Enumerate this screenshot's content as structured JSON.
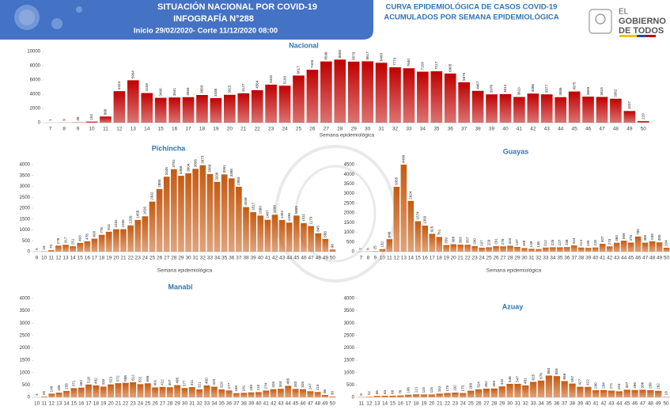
{
  "header": {
    "title_lines": [
      "SITUACIÓN NACIONAL POR  COVID-19",
      "INFOGRAFÍA N°288",
      "Inicio 29/02/2020- Corte 11/12/2020 08:00"
    ],
    "right_title": [
      "CURVA EPIDEMIOLÓGICA DE CASOS COVID-19",
      "ACUMULADOS POR SEMANA EPIDEMIOLÓGICA"
    ],
    "logo": [
      "EL",
      "GOBIERNO",
      "DE TODOS"
    ]
  },
  "chart_data": [
    {
      "type": "bar",
      "title": "Nacional",
      "xlabel": "Semana epidemiológica",
      "color": "#c00000",
      "categories": [
        "7",
        "8",
        "9",
        "10",
        "11",
        "12",
        "13",
        "14",
        "15",
        "16",
        "17",
        "18",
        "19",
        "20",
        "21",
        "22",
        "23",
        "24",
        "25",
        "26",
        "27",
        "28",
        "29",
        "30",
        "31",
        "32",
        "33",
        "34",
        "35",
        "36",
        "37",
        "38",
        "39",
        "40",
        "41",
        "42",
        "43",
        "44",
        "45",
        "46",
        "47",
        "48",
        "49",
        "50"
      ],
      "values": [
        1,
        9,
        38,
        152,
        866,
        4423,
        5954,
        4159,
        3490,
        3541,
        3583,
        3893,
        3446,
        3915,
        4127,
        4564,
        5342,
        5193,
        6617,
        7426,
        8598,
        8858,
        8573,
        8617,
        8409,
        7773,
        7640,
        7159,
        7217,
        6905,
        5675,
        4467,
        3976,
        4012,
        3610,
        4086,
        3977,
        3586,
        4375,
        3659,
        3616,
        3362,
        1637,
        229
      ],
      "ylim": [
        0,
        10000
      ],
      "yticks": [
        0,
        2000,
        4000,
        6000,
        8000,
        10000
      ]
    },
    {
      "type": "bar",
      "title": "Pichincha",
      "xlabel": "Semana epidemiológica",
      "color": "#c55a11",
      "categories": [
        "9",
        "10",
        "11",
        "12",
        "13",
        "14",
        "15",
        "16",
        "17",
        "18",
        "19",
        "20",
        "21",
        "22",
        "23",
        "24",
        "25",
        "26",
        "27",
        "28",
        "29",
        "30",
        "31",
        "32",
        "33",
        "34",
        "35",
        "36",
        "37",
        "38",
        "39",
        "40",
        "41",
        "42",
        "43",
        "44",
        "45",
        "46",
        "47",
        "48",
        "49",
        "50"
      ],
      "values": [
        5,
        16,
        70,
        278,
        317,
        251,
        403,
        478,
        600,
        775,
        915,
        1032,
        1035,
        1209,
        1458,
        1626,
        2302,
        2880,
        3445,
        3791,
        3488,
        3604,
        3806,
        3973,
        3569,
        3208,
        3551,
        3368,
        2983,
        2049,
        1817,
        1660,
        1467,
        1698,
        1452,
        1336,
        1659,
        1311,
        1179,
        845,
        588,
        98
      ],
      "ylim": [
        0,
        4000
      ],
      "yticks": [
        0,
        500,
        1000,
        1500,
        2000,
        2500,
        3000,
        3500,
        4000
      ]
    },
    {
      "type": "bar",
      "title": "Guayas",
      "xlabel": "Semana epidemiológica",
      "color": "#c55a11",
      "categories": [
        "7",
        "8",
        "9",
        "10",
        "11",
        "12",
        "13",
        "14",
        "15",
        "16",
        "17",
        "18",
        "19",
        "20",
        "21",
        "22",
        "23",
        "24",
        "25",
        "26",
        "27",
        "28",
        "29",
        "30",
        "31",
        "32",
        "33",
        "34",
        "35",
        "36",
        "37",
        "38",
        "39",
        "40",
        "41",
        "42",
        "43",
        "44",
        "45",
        "46",
        "47",
        "48",
        "49",
        "50"
      ],
      "values": [
        7,
        8,
        25,
        132,
        646,
        3355,
        4499,
        2624,
        1574,
        1350,
        925,
        761,
        339,
        388,
        363,
        357,
        290,
        207,
        229,
        291,
        276,
        310,
        247,
        188,
        149,
        136,
        212,
        228,
        227,
        238,
        324,
        214,
        195,
        218,
        407,
        273,
        460,
        569,
        470,
        785,
        468,
        539,
        480,
        204
      ],
      "ylim": [
        0,
        4500
      ],
      "yticks": [
        0,
        500,
        1000,
        1500,
        2000,
        2500,
        3000,
        3500,
        4000,
        4500
      ]
    },
    {
      "type": "bar",
      "title": "Manabí",
      "color": "#c55a11",
      "categories": [
        "10",
        "11",
        "12",
        "13",
        "14",
        "15",
        "16",
        "17",
        "18",
        "19",
        "20",
        "21",
        "22",
        "23",
        "24",
        "25",
        "26",
        "27",
        "28",
        "29",
        "30",
        "31",
        "32",
        "33",
        "34",
        "35",
        "36",
        "37",
        "38",
        "39",
        "40",
        "41",
        "42",
        "43",
        "44",
        "45",
        "46",
        "47",
        "48",
        "49",
        "50"
      ],
      "values": [
        4,
        26,
        149,
        188,
        258,
        371,
        392,
        518,
        482,
        433,
        523,
        572,
        586,
        612,
        532,
        566,
        401,
        422,
        407,
        495,
        377,
        411,
        321,
        480,
        429,
        320,
        277,
        169,
        181,
        199,
        210,
        274,
        328,
        344,
        465,
        340,
        328,
        247,
        215,
        96,
        30
      ],
      "ylim": [
        0,
        4000
      ],
      "yticks": [
        0,
        500,
        1000,
        1500,
        2000,
        2500,
        3000,
        3500,
        4000
      ]
    },
    {
      "type": "bar",
      "title": "Azuay",
      "color": "#c55a11",
      "categories": [
        "11",
        "12",
        "13",
        "14",
        "15",
        "16",
        "17",
        "18",
        "19",
        "20",
        "21",
        "22",
        "23",
        "24",
        "25",
        "26",
        "27",
        "28",
        "29",
        "30",
        "31",
        "32",
        "33",
        "34",
        "35",
        "36",
        "37",
        "38",
        "39",
        "40",
        "41",
        "42",
        "43",
        "44",
        "45",
        "46",
        "47",
        "48",
        "49",
        "50"
      ],
      "values": [
        9,
        22,
        56,
        63,
        66,
        76,
        106,
        121,
        115,
        115,
        152,
        175,
        192,
        173,
        268,
        324,
        352,
        359,
        442,
        546,
        547,
        481,
        625,
        678,
        880,
        859,
        656,
        557,
        427,
        422,
        290,
        294,
        271,
        243,
        307,
        296,
        306,
        289,
        262,
        19
      ],
      "ylim": [
        0,
        4000
      ],
      "yticks": [
        0,
        500,
        1000,
        1500,
        2000,
        2500,
        3000,
        3500,
        4000
      ]
    }
  ]
}
